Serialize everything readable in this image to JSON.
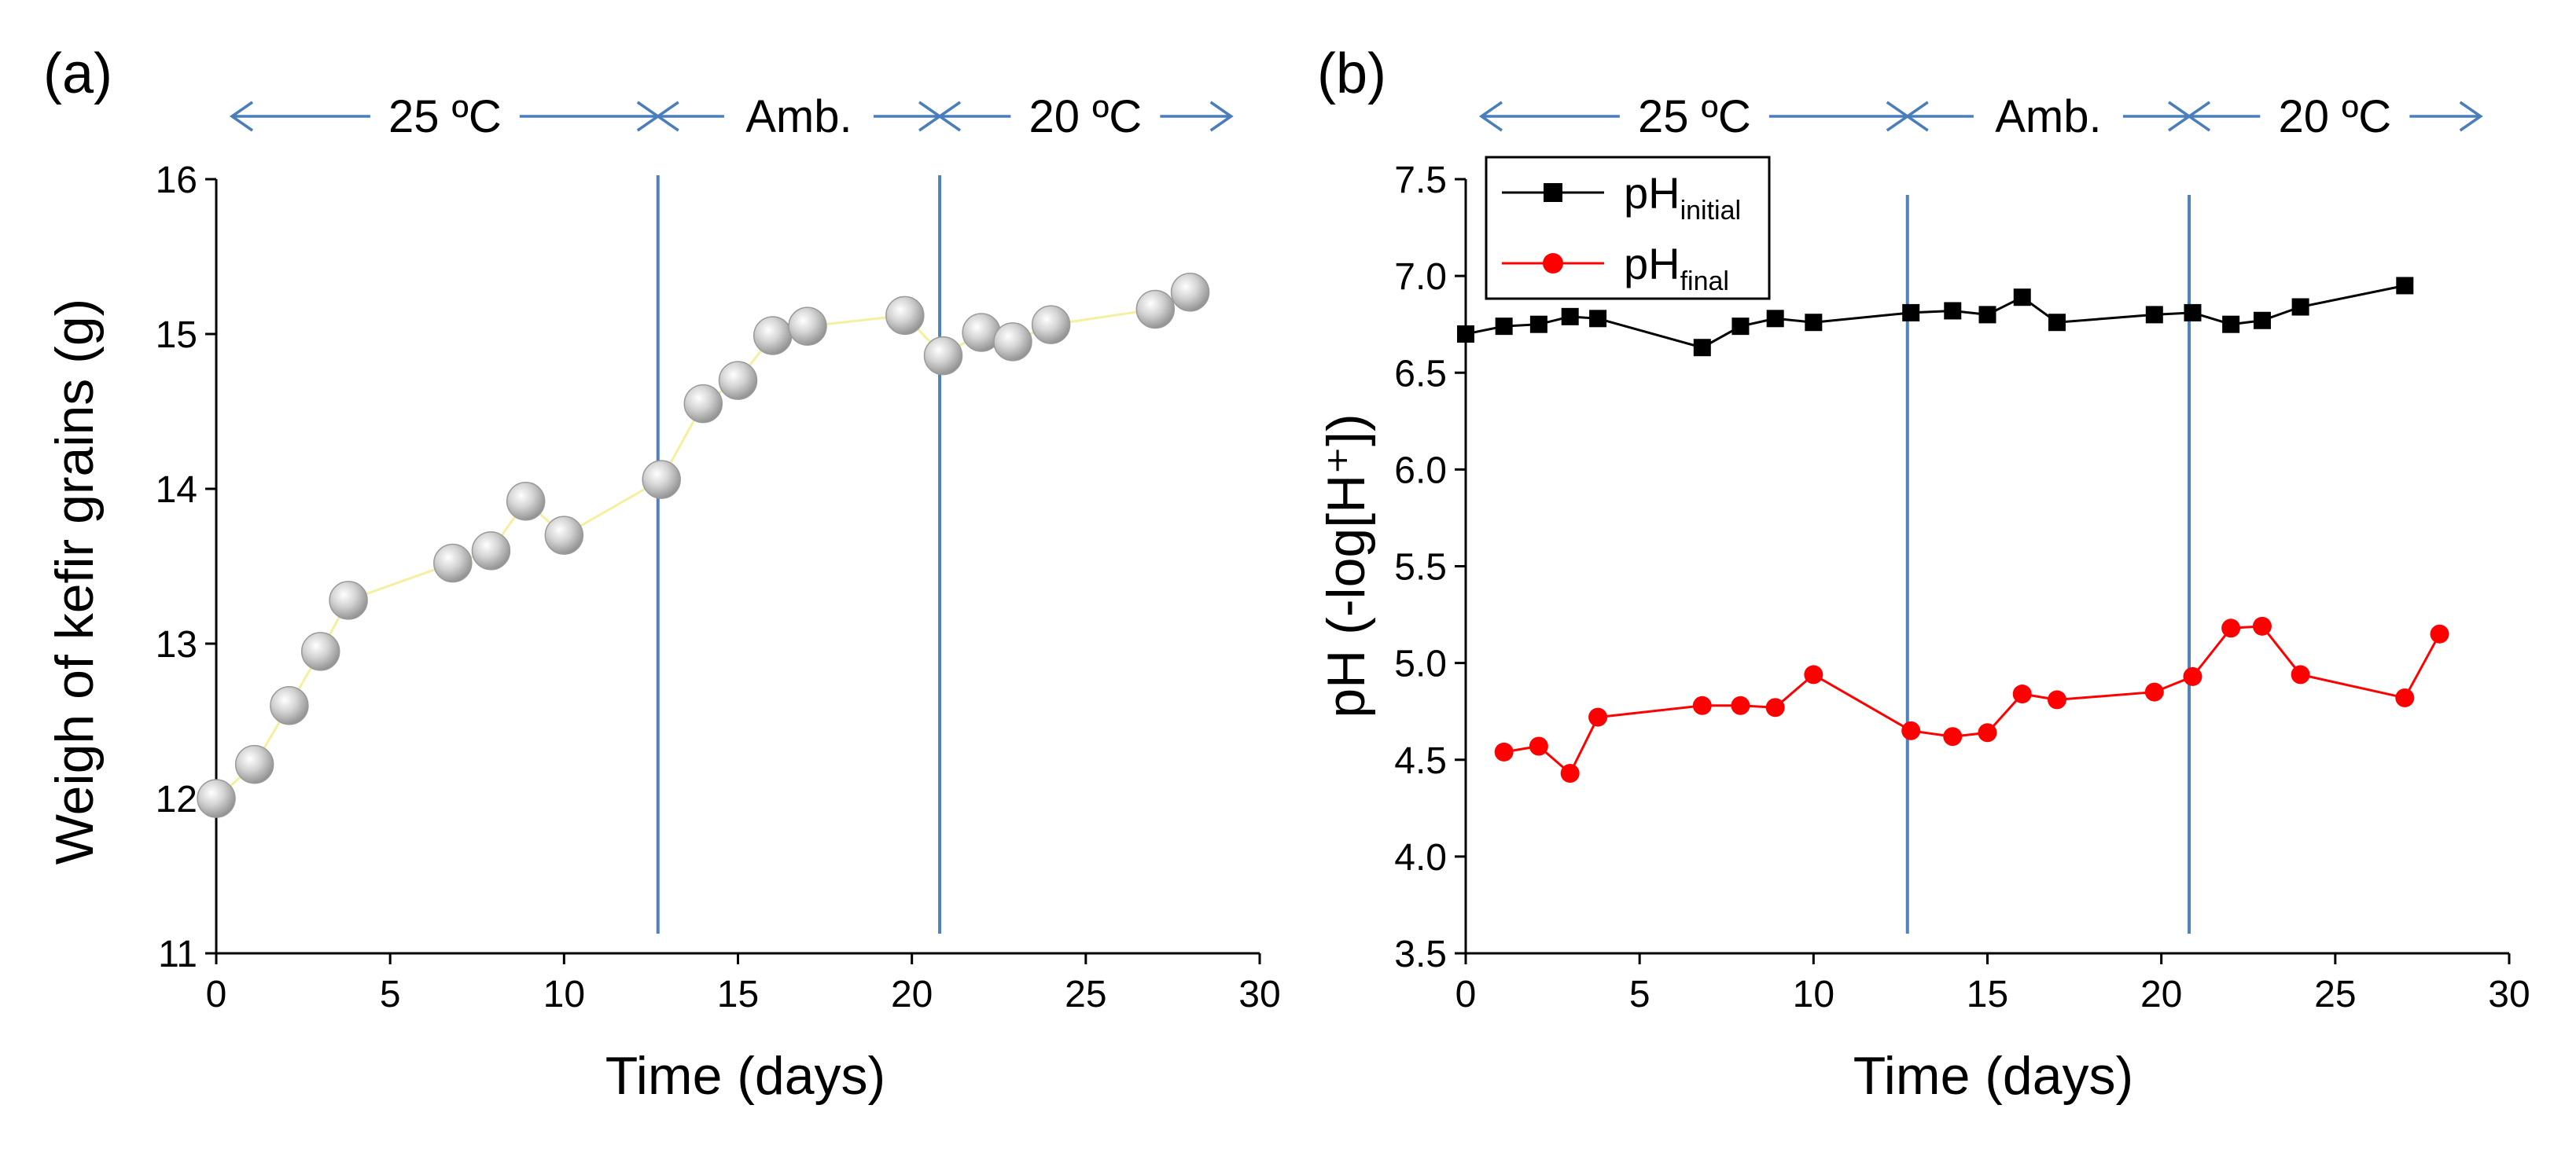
{
  "chart_data": [
    {
      "type": "scatter",
      "panel_label": "(a)",
      "xlabel": "Time (days)",
      "ylabel": "Weigh of kefir grains (g)",
      "xlim": [
        0,
        30
      ],
      "ylim": [
        11,
        16
      ],
      "xticks": [
        0,
        5,
        10,
        15,
        20,
        25,
        30
      ],
      "yticks": [
        11,
        12,
        13,
        14,
        15,
        16
      ],
      "phases": [
        {
          "label": "25 ºC",
          "start": 0,
          "end": 12.7
        },
        {
          "label": "Amb.",
          "start": 12.7,
          "end": 20.8
        },
        {
          "label": "20 ºC",
          "start": 20.8,
          "end": 28.5
        }
      ],
      "vlines": [
        12.7,
        20.8
      ],
      "series": [
        {
          "name": "Weight",
          "x": [
            0,
            1.1,
            2.1,
            3.0,
            3.8,
            6.8,
            7.9,
            8.9,
            10.0,
            12.8,
            14.0,
            15.0,
            16.0,
            17.0,
            19.8,
            20.9,
            22.0,
            22.9,
            24.0,
            27.0,
            28.0
          ],
          "y": [
            12.0,
            12.22,
            12.6,
            12.95,
            13.28,
            13.52,
            13.6,
            13.92,
            13.7,
            14.06,
            14.55,
            14.7,
            14.99,
            15.05,
            15.12,
            14.86,
            15.01,
            14.95,
            15.06,
            15.16,
            15.27
          ]
        }
      ]
    },
    {
      "type": "line",
      "panel_label": "(b)",
      "xlabel": "Time (days)",
      "ylabel": "pH (-log[H⁺])",
      "xlim": [
        0,
        30
      ],
      "ylim": [
        3.5,
        7.5
      ],
      "xticks": [
        0,
        5,
        10,
        15,
        20,
        25,
        30
      ],
      "yticks": [
        3.5,
        4.0,
        4.5,
        5.0,
        5.5,
        6.0,
        6.5,
        7.0,
        7.5
      ],
      "phases": [
        {
          "label": "25 ºC",
          "start": 0,
          "end": 12.7
        },
        {
          "label": "Amb.",
          "start": 12.7,
          "end": 20.8
        },
        {
          "label": "20 ºC",
          "start": 20.8,
          "end": 28.5
        }
      ],
      "vlines": [
        12.7,
        20.8
      ],
      "legend_position": "top-left",
      "series": [
        {
          "name": "pH initial",
          "legend_main": "pH",
          "legend_sub": "initial",
          "color": "#000000",
          "marker": "square",
          "x": [
            0,
            1.1,
            2.1,
            3.0,
            3.8,
            6.8,
            7.9,
            8.9,
            10.0,
            12.8,
            14.0,
            15.0,
            16.0,
            17.0,
            19.8,
            20.9,
            22.0,
            22.9,
            24.0,
            27.0
          ],
          "y": [
            6.7,
            6.74,
            6.75,
            6.79,
            6.78,
            6.63,
            6.74,
            6.78,
            6.76,
            6.81,
            6.82,
            6.8,
            6.89,
            6.76,
            6.8,
            6.81,
            6.75,
            6.77,
            6.84,
            6.95
          ]
        },
        {
          "name": "pH final",
          "legend_main": "pH",
          "legend_sub": "final",
          "color": "#ff0000",
          "marker": "circle",
          "x": [
            1.1,
            2.1,
            3.0,
            3.8,
            6.8,
            7.9,
            8.9,
            10.0,
            12.8,
            14.0,
            15.0,
            16.0,
            17.0,
            19.8,
            20.9,
            22.0,
            22.9,
            24.0,
            27.0,
            28.0
          ],
          "y": [
            4.54,
            4.57,
            4.43,
            4.72,
            4.78,
            4.78,
            4.77,
            4.94,
            4.65,
            4.62,
            4.64,
            4.84,
            4.81,
            4.85,
            4.93,
            5.18,
            5.19,
            4.94,
            4.82,
            5.15
          ]
        }
      ]
    }
  ],
  "colors": {
    "arrow": "#4a7ebb",
    "vline": "#4f81bd",
    "marker_a": "#c8c8c8",
    "trend_a": "#f5f0a0"
  }
}
